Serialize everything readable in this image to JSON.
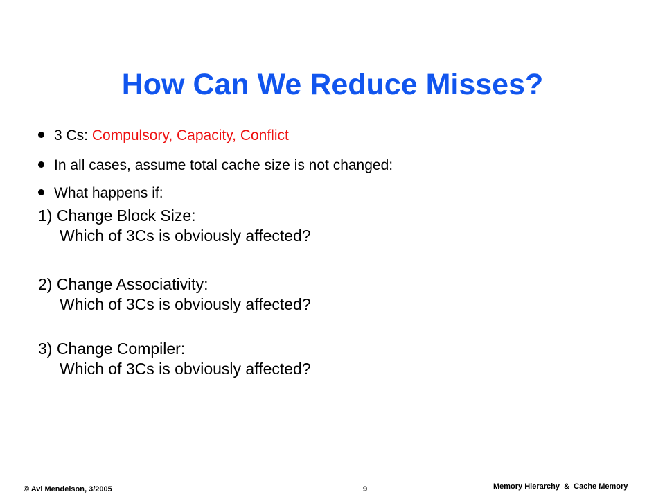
{
  "slide": {
    "title": "How Can We Reduce Misses?",
    "bullets": [
      {
        "prefix": "3 Cs: ",
        "highlight": "Compulsory, Capacity, Conflict"
      },
      {
        "text": "In all cases, assume total cache size is not changed:"
      },
      {
        "text": "What happens if:"
      }
    ],
    "items": [
      {
        "line1": "1) Change Block Size:",
        "line2": "Which of 3Cs is obviously affected?"
      },
      {
        "line1": "2) Change Associativity:",
        "line2": "Which of 3Cs is obviously affected?"
      },
      {
        "line1": "3) Change Compiler:",
        "line2": "Which of 3Cs is obviously affected?"
      }
    ],
    "highlight_color": "#ee1111",
    "title_color": "#1155ee"
  },
  "footer": {
    "author": "© Avi Mendelson, 3/2005",
    "page_number": "9",
    "course_title": "Memory Hierarchy  &  Cache Memory"
  }
}
